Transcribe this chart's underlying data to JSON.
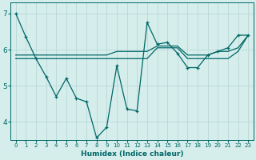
{
  "title": "",
  "xlabel": "Humidex (Indice chaleur)",
  "bg_color": "#d5eeec",
  "line_color": "#006666",
  "grid_color": "#b8d8d5",
  "x_data": [
    0,
    1,
    2,
    3,
    4,
    5,
    6,
    7,
    8,
    9,
    10,
    11,
    12,
    13,
    14,
    15,
    16,
    17,
    18,
    19,
    20,
    21,
    22,
    23
  ],
  "y_zigzag": [
    7.0,
    6.35,
    5.75,
    5.25,
    4.7,
    5.2,
    4.65,
    4.55,
    3.55,
    3.85,
    5.55,
    4.35,
    4.3,
    6.75,
    6.15,
    6.2,
    5.9,
    5.5,
    5.5,
    5.85,
    5.95,
    6.05,
    6.4,
    6.4
  ],
  "y_line1": [
    5.75,
    5.75,
    5.75,
    5.75,
    5.75,
    5.75,
    5.75,
    5.75,
    5.75,
    5.75,
    5.75,
    5.75,
    5.75,
    5.75,
    6.05,
    6.05,
    6.05,
    5.75,
    5.75,
    5.75,
    5.75,
    5.75,
    5.95,
    6.4
  ],
  "y_line2": [
    5.85,
    5.85,
    5.85,
    5.85,
    5.85,
    5.85,
    5.85,
    5.85,
    5.85,
    5.85,
    5.95,
    5.95,
    5.95,
    5.95,
    6.1,
    6.1,
    6.1,
    5.85,
    5.85,
    5.85,
    5.95,
    5.95,
    6.05,
    6.4
  ],
  "ylim": [
    3.5,
    7.3
  ],
  "xlim": [
    -0.5,
    23.5
  ],
  "yticks": [
    4,
    5,
    6,
    7
  ],
  "xticks": [
    0,
    1,
    2,
    3,
    4,
    5,
    6,
    7,
    8,
    9,
    10,
    11,
    12,
    13,
    14,
    15,
    16,
    17,
    18,
    19,
    20,
    21,
    22,
    23
  ]
}
